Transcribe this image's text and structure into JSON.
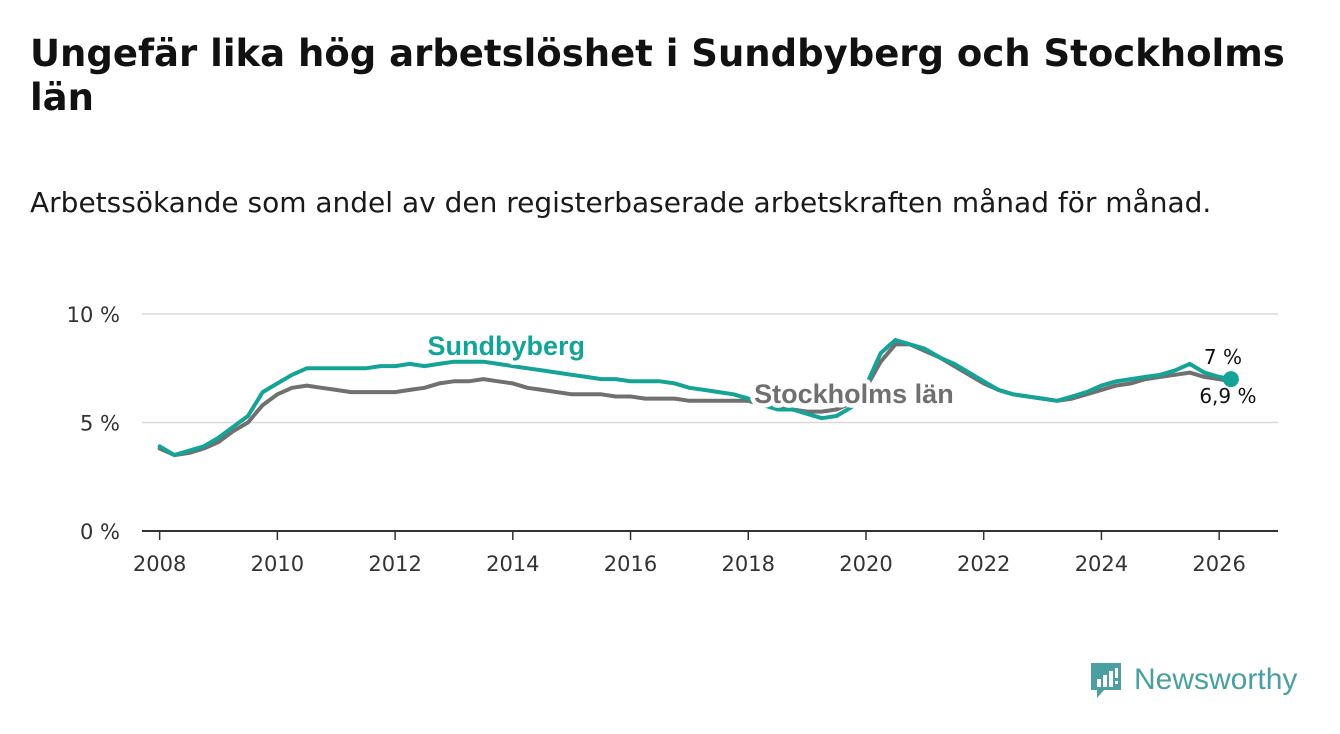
{
  "title": "Ungefär lika hög arbetslöshet i Sundbyberg och Stockholms län",
  "subtitle": "Arbetssökande som andel av den registerbaserade arbetskraften månad för månad.",
  "brand": {
    "name": "Newsworthy",
    "icon": "bar-chart-icon",
    "color": "#4a9fa0"
  },
  "colors": {
    "sundbyberg": "#14a396",
    "stockholm": "#707070",
    "grid": "#d9d9d9",
    "axis": "#333333"
  },
  "chart_data": {
    "type": "line",
    "title": "Ungefär lika hög arbetslöshet i Sundbyberg och Stockholms län",
    "xlabel": "",
    "ylabel": "",
    "xlim": [
      2007.7,
      2027.0
    ],
    "ylim": [
      0,
      10
    ],
    "x_ticks": [
      2008,
      2010,
      2012,
      2014,
      2016,
      2018,
      2020,
      2022,
      2024,
      2026
    ],
    "y_ticks": [
      {
        "value": 0,
        "label": "0 %"
      },
      {
        "value": 5,
        "label": "5 %"
      },
      {
        "value": 10,
        "label": "10 %"
      }
    ],
    "series": [
      {
        "name": "Stockholms län",
        "label": "Stockholms län",
        "color": "#707070",
        "end_label": "6,9 %",
        "x": [
          2008.0,
          2008.25,
          2008.5,
          2008.75,
          2009.0,
          2009.25,
          2009.5,
          2009.75,
          2010.0,
          2010.25,
          2010.5,
          2010.75,
          2011.0,
          2011.25,
          2011.5,
          2011.75,
          2012.0,
          2012.25,
          2012.5,
          2012.75,
          2013.0,
          2013.25,
          2013.5,
          2013.75,
          2014.0,
          2014.25,
          2014.5,
          2014.75,
          2015.0,
          2015.25,
          2015.5,
          2015.75,
          2016.0,
          2016.25,
          2016.5,
          2016.75,
          2017.0,
          2017.25,
          2017.5,
          2017.75,
          2018.0,
          2018.25,
          2018.5,
          2018.75,
          2019.0,
          2019.25,
          2019.5,
          2019.75,
          2020.0,
          2020.25,
          2020.5,
          2020.75,
          2021.0,
          2021.25,
          2021.5,
          2021.75,
          2022.0,
          2022.25,
          2022.5,
          2022.75,
          2023.0,
          2023.25,
          2023.5,
          2023.75,
          2024.0,
          2024.25,
          2024.5,
          2024.75,
          2025.0,
          2025.25,
          2025.5,
          2025.75,
          2026.0,
          2026.2
        ],
        "values": [
          3.8,
          3.5,
          3.6,
          3.8,
          4.1,
          4.6,
          5.0,
          5.8,
          6.3,
          6.6,
          6.7,
          6.6,
          6.5,
          6.4,
          6.4,
          6.4,
          6.4,
          6.5,
          6.6,
          6.8,
          6.9,
          6.9,
          7.0,
          6.9,
          6.8,
          6.6,
          6.5,
          6.4,
          6.3,
          6.3,
          6.3,
          6.2,
          6.2,
          6.1,
          6.1,
          6.1,
          6.0,
          6.0,
          6.0,
          6.0,
          6.0,
          5.8,
          5.7,
          5.6,
          5.5,
          5.5,
          5.6,
          5.9,
          6.6,
          7.8,
          8.6,
          8.6,
          8.3,
          8.0,
          7.6,
          7.2,
          6.8,
          6.5,
          6.3,
          6.2,
          6.1,
          6.0,
          6.1,
          6.3,
          6.5,
          6.7,
          6.8,
          7.0,
          7.1,
          7.2,
          7.3,
          7.1,
          7.0,
          6.9
        ]
      },
      {
        "name": "Sundbyberg",
        "label": "Sundbyberg",
        "color": "#14a396",
        "end_label": "7 %",
        "x": [
          2008.0,
          2008.25,
          2008.5,
          2008.75,
          2009.0,
          2009.25,
          2009.5,
          2009.75,
          2010.0,
          2010.25,
          2010.5,
          2010.75,
          2011.0,
          2011.25,
          2011.5,
          2011.75,
          2012.0,
          2012.25,
          2012.5,
          2012.75,
          2013.0,
          2013.25,
          2013.5,
          2013.75,
          2014.0,
          2014.25,
          2014.5,
          2014.75,
          2015.0,
          2015.25,
          2015.5,
          2015.75,
          2016.0,
          2016.25,
          2016.5,
          2016.75,
          2017.0,
          2017.25,
          2017.5,
          2017.75,
          2018.0,
          2018.25,
          2018.5,
          2018.75,
          2019.0,
          2019.25,
          2019.5,
          2019.75,
          2020.0,
          2020.25,
          2020.5,
          2020.75,
          2021.0,
          2021.25,
          2021.5,
          2021.75,
          2022.0,
          2022.25,
          2022.5,
          2022.75,
          2023.0,
          2023.25,
          2023.5,
          2023.75,
          2024.0,
          2024.25,
          2024.5,
          2024.75,
          2025.0,
          2025.25,
          2025.5,
          2025.75,
          2026.0,
          2026.2
        ],
        "values": [
          3.9,
          3.5,
          3.7,
          3.9,
          4.3,
          4.8,
          5.3,
          6.4,
          6.8,
          7.2,
          7.5,
          7.5,
          7.5,
          7.5,
          7.5,
          7.6,
          7.6,
          7.7,
          7.6,
          7.7,
          7.8,
          7.8,
          7.8,
          7.7,
          7.6,
          7.5,
          7.4,
          7.3,
          7.2,
          7.1,
          7.0,
          7.0,
          6.9,
          6.9,
          6.9,
          6.8,
          6.6,
          6.5,
          6.4,
          6.3,
          6.1,
          5.8,
          5.6,
          5.6,
          5.4,
          5.2,
          5.3,
          5.7,
          6.7,
          8.2,
          8.8,
          8.6,
          8.4,
          8.0,
          7.7,
          7.3,
          6.9,
          6.5,
          6.3,
          6.2,
          6.1,
          6.0,
          6.2,
          6.4,
          6.7,
          6.9,
          7.0,
          7.1,
          7.2,
          7.4,
          7.7,
          7.3,
          7.1,
          7.0
        ]
      }
    ],
    "annotations": [
      "Sundbyberg",
      "Stockholms län",
      "7 %",
      "6,9 %"
    ]
  }
}
